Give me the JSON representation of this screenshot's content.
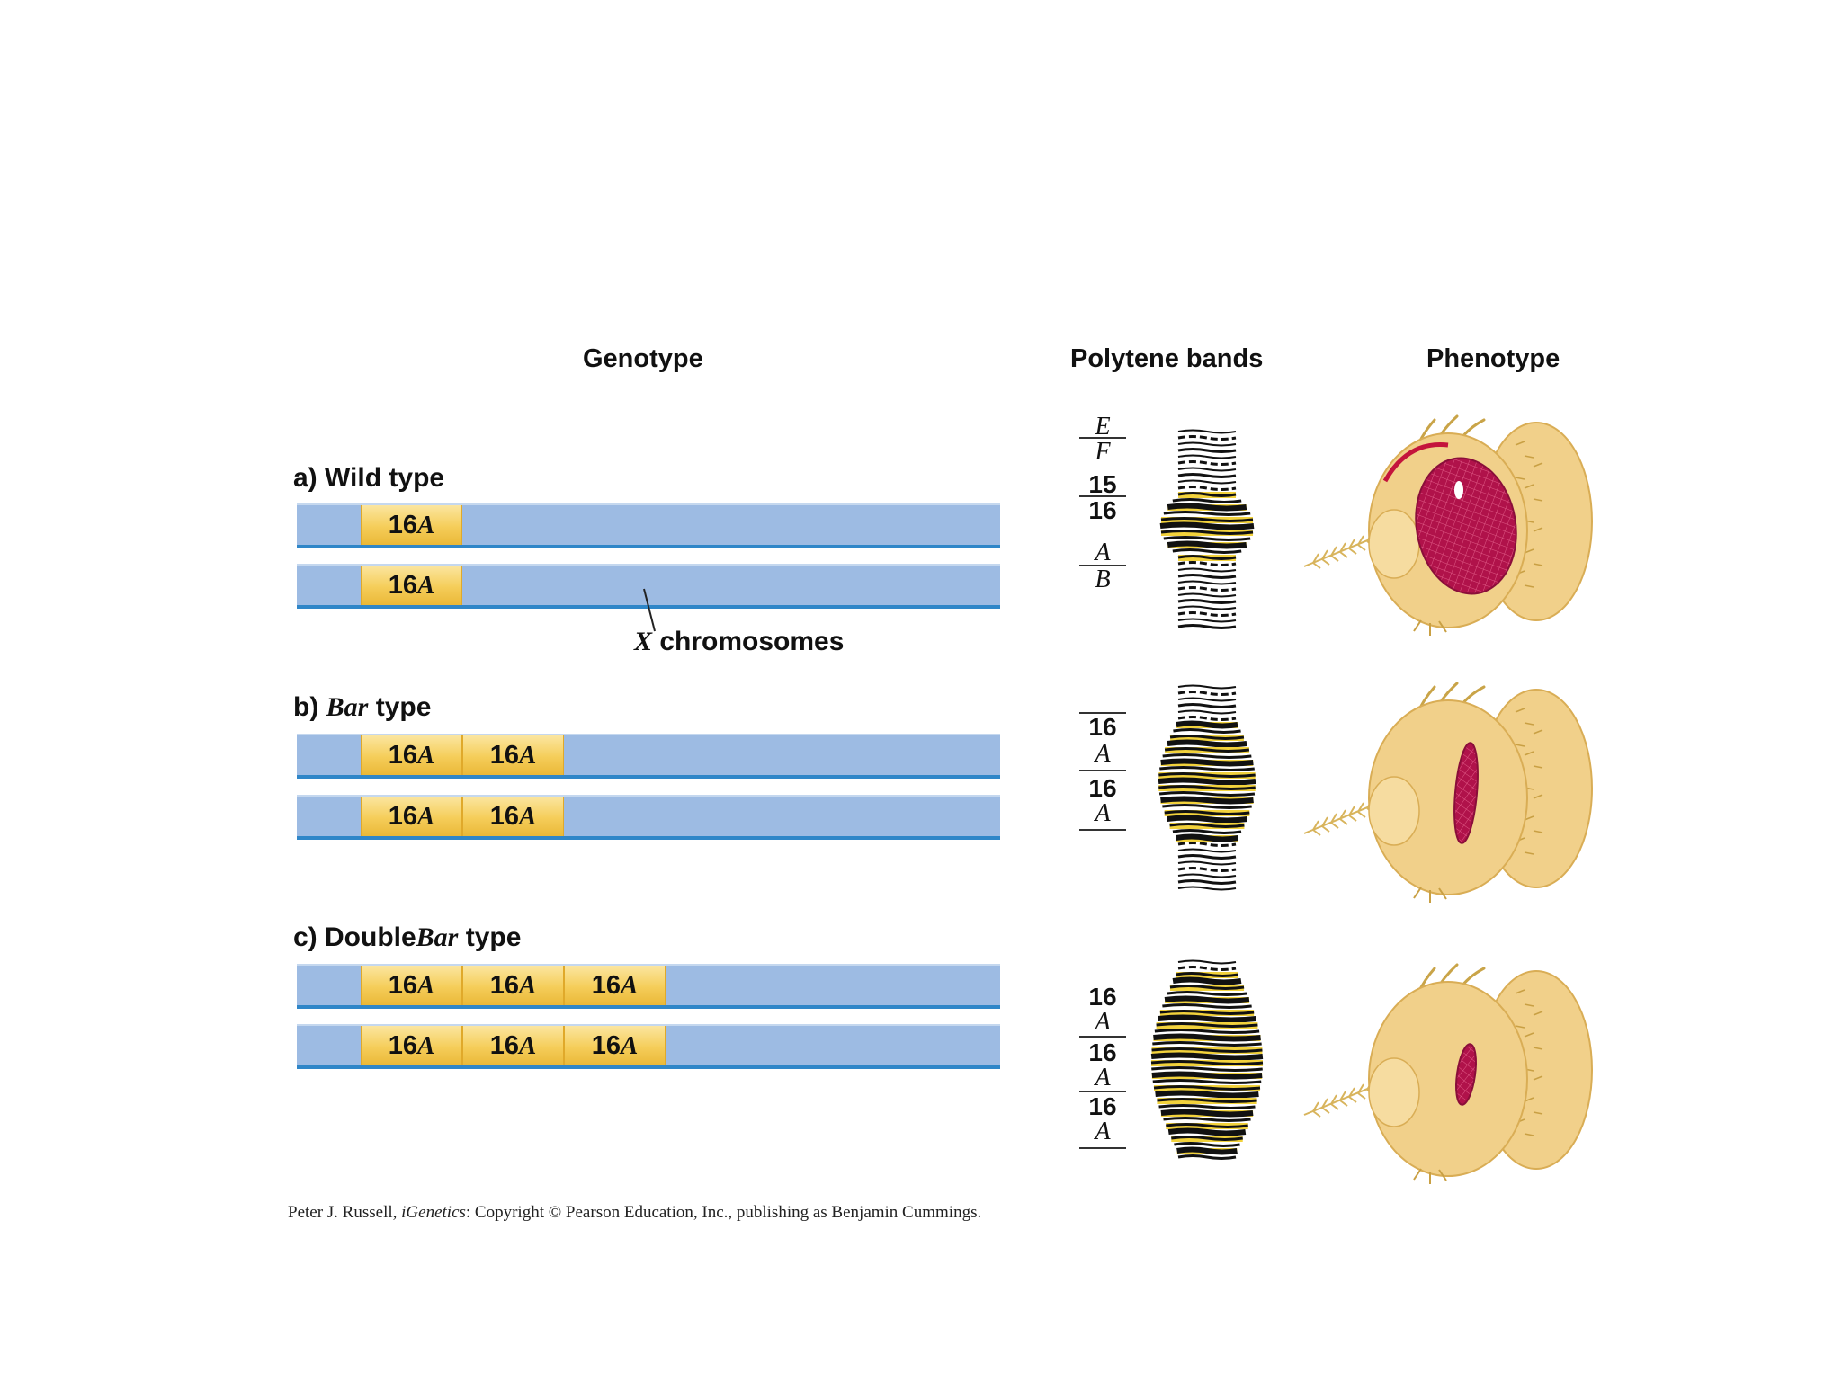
{
  "headers": {
    "genotype": "Genotype",
    "polytene": "Polytene bands",
    "phenotype": "Phenotype"
  },
  "rows": [
    {
      "prefix": "a) Wild",
      "italic": "",
      "suffix": "type",
      "segment_count": 1,
      "segment_label_num": "16",
      "segment_label_letter": "A"
    },
    {
      "prefix": "b)",
      "italic": "Bar",
      "suffix": "type",
      "segment_count": 2,
      "segment_label_num": "16",
      "segment_label_letter": "A"
    },
    {
      "prefix": "c) Double",
      "italic": "Bar",
      "suffix": "type",
      "segment_count": 3,
      "segment_label_num": "16",
      "segment_label_letter": "A"
    }
  ],
  "chromosome_label": {
    "italic": "X",
    "text": "chromosomes"
  },
  "polytene_labels": {
    "a": [
      "E",
      "F",
      "15",
      "16",
      "A",
      "B"
    ],
    "b": [
      "16",
      "A",
      "16",
      "A"
    ],
    "c": [
      "16",
      "A",
      "16",
      "A",
      "16",
      "A"
    ]
  },
  "credit": {
    "author": "Peter J. Russell,",
    "book": "iGenetics",
    "rest": ": Copyright © Pearson Education, Inc., publishing as Benjamin Cummings."
  },
  "colors": {
    "chromosome": "#9dbbe3",
    "segment": "#f5cd59",
    "band_yellow": "#f2d23c",
    "eye_red": "#b0124a",
    "head": "#f1d08a"
  }
}
